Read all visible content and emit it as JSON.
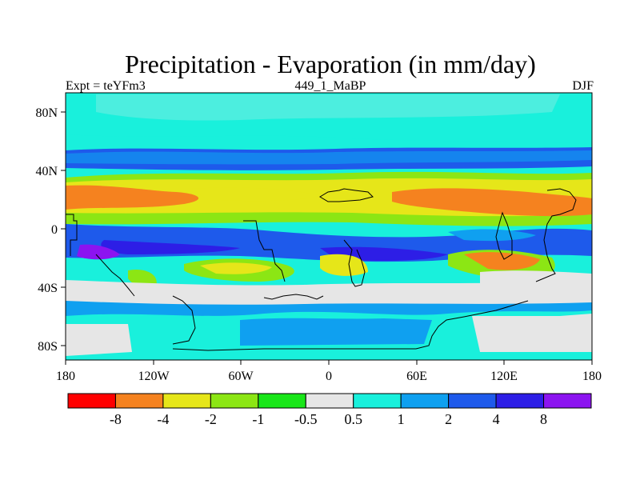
{
  "figure": {
    "title": "Precipitation - Evaporation (in mm/day)",
    "left_label": "Expt = teYFm3",
    "center_label": "449_1_MaBP",
    "right_label": "DJF"
  },
  "axes": {
    "x_ticks": [
      "180",
      "120W",
      "60W",
      "0",
      "60E",
      "120E",
      "180"
    ],
    "y_ticks": [
      "80N",
      "40N",
      "0",
      "40S",
      "80S"
    ]
  },
  "colorbar": {
    "colors": [
      "#ff0000",
      "#f5821f",
      "#e6e619",
      "#8ce614",
      "#19e619",
      "#e6e6e6",
      "#19f0dc",
      "#0fa0f0",
      "#1e5aeb",
      "#2d1ee6",
      "#8c14f0"
    ],
    "labels": [
      "-8",
      "-4",
      "-2",
      "-1",
      "-0.5",
      "0.5",
      "1",
      "2",
      "4",
      "8"
    ]
  },
  "map_palette": {
    "bg": "#e6e6e6",
    "cyan": "#19f0dc",
    "lightblue": "#0fa0f0",
    "blue": "#1e5aeb",
    "indigo": "#2d1ee6",
    "purple": "#8c14f0",
    "green": "#19e619",
    "lime": "#8ce614",
    "yellow": "#e6e619",
    "orange": "#f5821f",
    "red": "#ff0000"
  }
}
